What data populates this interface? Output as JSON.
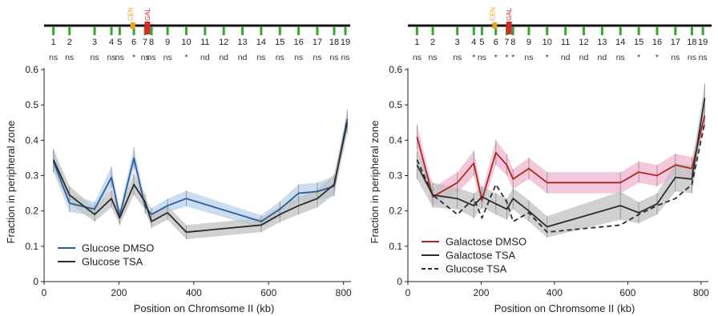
{
  "colors": {
    "glucose_dmso": "#2a5d9f",
    "glucose_dmso_band": "#b9d2ea",
    "glucose_tsa": "#2b2b2b",
    "tsa_band": "#c2c2c2",
    "galactose_dmso": "#a8291c",
    "galactose_dmso_band": "#f2b4d2",
    "locus_marker": "#3aa535",
    "cen_marker": "#f0a020",
    "gal_marker": "#d42b2b"
  },
  "chart_data": [
    {
      "type": "line",
      "xlabel": "Position on Chromsome II (kb)",
      "ylabel": "Fraction in peripheral zone",
      "xlim": [
        0,
        820
      ],
      "ylim": [
        0,
        0.6
      ],
      "xticks": [
        0,
        200,
        400,
        600,
        800
      ],
      "yticks": [
        0,
        0.1,
        0.2,
        0.3,
        0.4,
        0.5,
        0.6
      ],
      "ytick_labels": [
        "0",
        "0.1",
        "0.2",
        "0.3",
        "0.4",
        "0.5",
        "0.6"
      ],
      "grid": false,
      "legend_position": "bottom-left",
      "chromosome": {
        "cen_label": "CEN",
        "gal_label": "GAL",
        "cen_position": 237,
        "gal_position": 276,
        "loci": [
          {
            "label": "1",
            "x": 25,
            "sig": "ns"
          },
          {
            "label": "2",
            "x": 68,
            "sig": "ns"
          },
          {
            "label": "3",
            "x": 135,
            "sig": "ns"
          },
          {
            "label": "4",
            "x": 180,
            "sig": "ns"
          },
          {
            "label": "5",
            "x": 202,
            "sig": "ns"
          },
          {
            "label": "6",
            "x": 240,
            "sig": "*"
          },
          {
            "label": "7",
            "x": 270,
            "sig": "ns"
          },
          {
            "label": "8",
            "x": 287,
            "sig": "ns"
          },
          {
            "label": "9",
            "x": 330,
            "sig": "ns"
          },
          {
            "label": "10",
            "x": 380,
            "sig": "*"
          },
          {
            "label": "11",
            "x": 430,
            "sig": "nd"
          },
          {
            "label": "12",
            "x": 480,
            "sig": "nd"
          },
          {
            "label": "13",
            "x": 530,
            "sig": "nd"
          },
          {
            "label": "14",
            "x": 580,
            "sig": "ns"
          },
          {
            "label": "15",
            "x": 630,
            "sig": "ns"
          },
          {
            "label": "16",
            "x": 680,
            "sig": "ns"
          },
          {
            "label": "17",
            "x": 730,
            "sig": "ns"
          },
          {
            "label": "18",
            "x": 775,
            "sig": "ns"
          },
          {
            "label": "19",
            "x": 805,
            "sig": "ns"
          }
        ]
      },
      "series": [
        {
          "name": "Glucose DMSO",
          "color": "#2a5d9f",
          "band_color": "#b9d2ea",
          "dash": false,
          "x": [
            25,
            68,
            135,
            180,
            202,
            240,
            270,
            287,
            330,
            380,
            580,
            630,
            680,
            730,
            775,
            810
          ],
          "y": [
            0.34,
            0.222,
            0.205,
            0.295,
            0.185,
            0.35,
            0.212,
            0.19,
            0.215,
            0.235,
            0.17,
            0.205,
            0.25,
            0.255,
            0.27,
            0.46
          ],
          "err": [
            0.03,
            0.025,
            0.02,
            0.03,
            0.02,
            0.03,
            0.02,
            0.018,
            0.02,
            0.022,
            0.018,
            0.022,
            0.025,
            0.025,
            0.028,
            0.025
          ]
        },
        {
          "name": "Glucose TSA",
          "color": "#2b2b2b",
          "band_color": "#c2c2c2",
          "dash": false,
          "x": [
            25,
            68,
            135,
            180,
            202,
            240,
            270,
            287,
            330,
            380,
            580,
            630,
            680,
            730,
            775,
            810
          ],
          "y": [
            0.345,
            0.245,
            0.19,
            0.235,
            0.18,
            0.275,
            0.225,
            0.17,
            0.195,
            0.14,
            0.16,
            0.19,
            0.215,
            0.235,
            0.275,
            0.45
          ],
          "err": [
            0.03,
            0.025,
            0.02,
            0.025,
            0.02,
            0.03,
            0.022,
            0.018,
            0.02,
            0.02,
            0.02,
            0.022,
            0.025,
            0.025,
            0.028,
            0.03
          ]
        }
      ]
    },
    {
      "type": "line",
      "xlabel": "Position on Chromsome II (kb)",
      "ylabel": "Fraction in peripheral zone",
      "xlim": [
        0,
        820
      ],
      "ylim": [
        0,
        0.6
      ],
      "xticks": [
        0,
        200,
        400,
        600,
        800
      ],
      "yticks": [
        0,
        0.1,
        0.2,
        0.3,
        0.4,
        0.5,
        0.6
      ],
      "ytick_labels": [
        "0",
        "0.1",
        "0.2",
        "0.3",
        "0.4",
        "0.5",
        "0.6"
      ],
      "grid": false,
      "legend_position": "bottom-left",
      "chromosome": {
        "cen_label": "CEN",
        "gal_label": "GAL",
        "cen_position": 237,
        "gal_position": 276,
        "loci": [
          {
            "label": "1",
            "x": 25,
            "sig": "ns"
          },
          {
            "label": "2",
            "x": 68,
            "sig": "ns"
          },
          {
            "label": "3",
            "x": 135,
            "sig": "ns"
          },
          {
            "label": "4",
            "x": 180,
            "sig": "*"
          },
          {
            "label": "5",
            "x": 202,
            "sig": "ns"
          },
          {
            "label": "6",
            "x": 240,
            "sig": "*"
          },
          {
            "label": "7",
            "x": 270,
            "sig": "*"
          },
          {
            "label": "8",
            "x": 287,
            "sig": "*"
          },
          {
            "label": "9",
            "x": 330,
            "sig": "ns"
          },
          {
            "label": "10",
            "x": 380,
            "sig": "*"
          },
          {
            "label": "11",
            "x": 430,
            "sig": "nd"
          },
          {
            "label": "12",
            "x": 480,
            "sig": "nd"
          },
          {
            "label": "13",
            "x": 530,
            "sig": "nd"
          },
          {
            "label": "14",
            "x": 580,
            "sig": "ns"
          },
          {
            "label": "15",
            "x": 630,
            "sig": "*"
          },
          {
            "label": "16",
            "x": 680,
            "sig": "*"
          },
          {
            "label": "17",
            "x": 730,
            "sig": "ns"
          },
          {
            "label": "18",
            "x": 775,
            "sig": "ns"
          },
          {
            "label": "19",
            "x": 805,
            "sig": "ns"
          }
        ]
      },
      "series": [
        {
          "name": "Galactose DMSO",
          "color": "#a8291c",
          "band_color": "#f2b4d2",
          "dash": false,
          "x": [
            25,
            68,
            135,
            180,
            202,
            240,
            270,
            287,
            330,
            380,
            580,
            630,
            680,
            730,
            775,
            810
          ],
          "y": [
            0.41,
            0.24,
            0.28,
            0.335,
            0.23,
            0.365,
            0.33,
            0.29,
            0.32,
            0.28,
            0.28,
            0.31,
            0.3,
            0.33,
            0.32,
            0.47
          ],
          "err": [
            0.035,
            0.025,
            0.03,
            0.035,
            0.025,
            0.035,
            0.03,
            0.028,
            0.03,
            0.03,
            0.03,
            0.03,
            0.03,
            0.032,
            0.032,
            0.03
          ]
        },
        {
          "name": "Galactose TSA",
          "color": "#2b2b2b",
          "band_color": "#c2c2c2",
          "dash": false,
          "x": [
            25,
            68,
            135,
            180,
            202,
            240,
            270,
            287,
            330,
            380,
            580,
            630,
            680,
            730,
            775,
            810
          ],
          "y": [
            0.33,
            0.245,
            0.235,
            0.215,
            0.24,
            0.22,
            0.205,
            0.235,
            0.2,
            0.155,
            0.215,
            0.195,
            0.22,
            0.295,
            0.29,
            0.52
          ],
          "err": [
            0.04,
            0.035,
            0.03,
            0.035,
            0.03,
            0.03,
            0.03,
            0.03,
            0.03,
            0.03,
            0.04,
            0.03,
            0.03,
            0.04,
            0.04,
            0.04
          ]
        },
        {
          "name": "Glucose TSA",
          "color": "#2b2b2b",
          "dash": true,
          "x": [
            25,
            68,
            135,
            180,
            202,
            240,
            270,
            287,
            330,
            380,
            580,
            630,
            680,
            730,
            775,
            810
          ],
          "y": [
            0.345,
            0.245,
            0.19,
            0.235,
            0.18,
            0.275,
            0.225,
            0.17,
            0.195,
            0.14,
            0.16,
            0.19,
            0.215,
            0.235,
            0.275,
            0.45
          ]
        }
      ]
    }
  ]
}
